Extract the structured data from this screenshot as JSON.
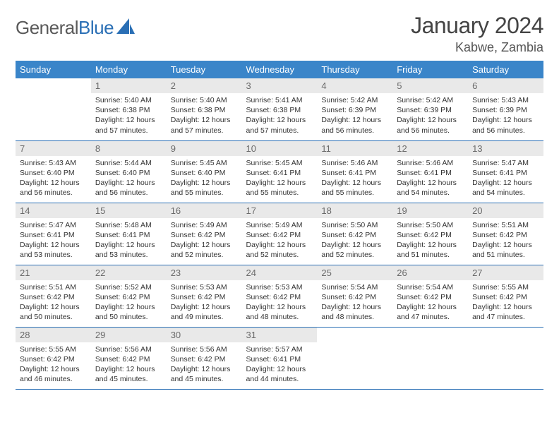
{
  "logo": {
    "word1": "General",
    "word2": "Blue"
  },
  "title": "January 2024",
  "location": "Kabwe, Zambia",
  "colors": {
    "header_bg": "#3a85c9",
    "header_text": "#ffffff",
    "daynum_bg": "#e9e9e9",
    "daynum_text": "#6a6a6a",
    "rule": "#2a6fb5",
    "logo_blue": "#2a6fb5",
    "logo_gray": "#5a5a5a"
  },
  "weekdays": [
    "Sunday",
    "Monday",
    "Tuesday",
    "Wednesday",
    "Thursday",
    "Friday",
    "Saturday"
  ],
  "grid": [
    [
      {
        "n": "",
        "sr": "",
        "ss": "",
        "dl": ""
      },
      {
        "n": "1",
        "sr": "5:40 AM",
        "ss": "6:38 PM",
        "dl": "12 hours and 57 minutes."
      },
      {
        "n": "2",
        "sr": "5:40 AM",
        "ss": "6:38 PM",
        "dl": "12 hours and 57 minutes."
      },
      {
        "n": "3",
        "sr": "5:41 AM",
        "ss": "6:38 PM",
        "dl": "12 hours and 57 minutes."
      },
      {
        "n": "4",
        "sr": "5:42 AM",
        "ss": "6:39 PM",
        "dl": "12 hours and 56 minutes."
      },
      {
        "n": "5",
        "sr": "5:42 AM",
        "ss": "6:39 PM",
        "dl": "12 hours and 56 minutes."
      },
      {
        "n": "6",
        "sr": "5:43 AM",
        "ss": "6:39 PM",
        "dl": "12 hours and 56 minutes."
      }
    ],
    [
      {
        "n": "7",
        "sr": "5:43 AM",
        "ss": "6:40 PM",
        "dl": "12 hours and 56 minutes."
      },
      {
        "n": "8",
        "sr": "5:44 AM",
        "ss": "6:40 PM",
        "dl": "12 hours and 56 minutes."
      },
      {
        "n": "9",
        "sr": "5:45 AM",
        "ss": "6:40 PM",
        "dl": "12 hours and 55 minutes."
      },
      {
        "n": "10",
        "sr": "5:45 AM",
        "ss": "6:41 PM",
        "dl": "12 hours and 55 minutes."
      },
      {
        "n": "11",
        "sr": "5:46 AM",
        "ss": "6:41 PM",
        "dl": "12 hours and 55 minutes."
      },
      {
        "n": "12",
        "sr": "5:46 AM",
        "ss": "6:41 PM",
        "dl": "12 hours and 54 minutes."
      },
      {
        "n": "13",
        "sr": "5:47 AM",
        "ss": "6:41 PM",
        "dl": "12 hours and 54 minutes."
      }
    ],
    [
      {
        "n": "14",
        "sr": "5:47 AM",
        "ss": "6:41 PM",
        "dl": "12 hours and 53 minutes."
      },
      {
        "n": "15",
        "sr": "5:48 AM",
        "ss": "6:41 PM",
        "dl": "12 hours and 53 minutes."
      },
      {
        "n": "16",
        "sr": "5:49 AM",
        "ss": "6:42 PM",
        "dl": "12 hours and 52 minutes."
      },
      {
        "n": "17",
        "sr": "5:49 AM",
        "ss": "6:42 PM",
        "dl": "12 hours and 52 minutes."
      },
      {
        "n": "18",
        "sr": "5:50 AM",
        "ss": "6:42 PM",
        "dl": "12 hours and 52 minutes."
      },
      {
        "n": "19",
        "sr": "5:50 AM",
        "ss": "6:42 PM",
        "dl": "12 hours and 51 minutes."
      },
      {
        "n": "20",
        "sr": "5:51 AM",
        "ss": "6:42 PM",
        "dl": "12 hours and 51 minutes."
      }
    ],
    [
      {
        "n": "21",
        "sr": "5:51 AM",
        "ss": "6:42 PM",
        "dl": "12 hours and 50 minutes."
      },
      {
        "n": "22",
        "sr": "5:52 AM",
        "ss": "6:42 PM",
        "dl": "12 hours and 50 minutes."
      },
      {
        "n": "23",
        "sr": "5:53 AM",
        "ss": "6:42 PM",
        "dl": "12 hours and 49 minutes."
      },
      {
        "n": "24",
        "sr": "5:53 AM",
        "ss": "6:42 PM",
        "dl": "12 hours and 48 minutes."
      },
      {
        "n": "25",
        "sr": "5:54 AM",
        "ss": "6:42 PM",
        "dl": "12 hours and 48 minutes."
      },
      {
        "n": "26",
        "sr": "5:54 AM",
        "ss": "6:42 PM",
        "dl": "12 hours and 47 minutes."
      },
      {
        "n": "27",
        "sr": "5:55 AM",
        "ss": "6:42 PM",
        "dl": "12 hours and 47 minutes."
      }
    ],
    [
      {
        "n": "28",
        "sr": "5:55 AM",
        "ss": "6:42 PM",
        "dl": "12 hours and 46 minutes."
      },
      {
        "n": "29",
        "sr": "5:56 AM",
        "ss": "6:42 PM",
        "dl": "12 hours and 45 minutes."
      },
      {
        "n": "30",
        "sr": "5:56 AM",
        "ss": "6:42 PM",
        "dl": "12 hours and 45 minutes."
      },
      {
        "n": "31",
        "sr": "5:57 AM",
        "ss": "6:41 PM",
        "dl": "12 hours and 44 minutes."
      },
      {
        "n": "",
        "sr": "",
        "ss": "",
        "dl": ""
      },
      {
        "n": "",
        "sr": "",
        "ss": "",
        "dl": ""
      },
      {
        "n": "",
        "sr": "",
        "ss": "",
        "dl": ""
      }
    ]
  ],
  "labels": {
    "sunrise": "Sunrise:",
    "sunset": "Sunset:",
    "daylight": "Daylight:"
  }
}
